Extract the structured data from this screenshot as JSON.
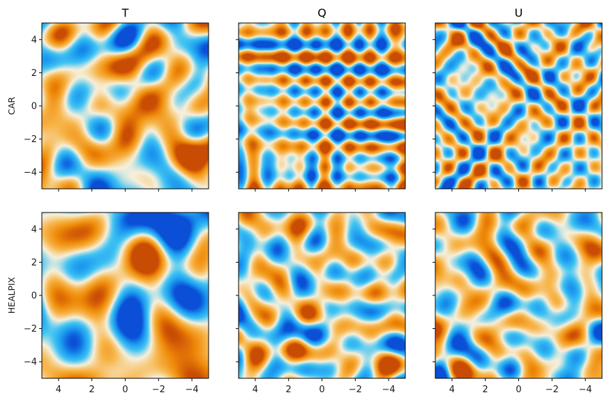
{
  "chart_data": {
    "type": "heatmap",
    "columns": [
      "T",
      "Q",
      "U"
    ],
    "rows": [
      "CAR",
      "HEALPIX"
    ],
    "xlim": [
      5,
      -5
    ],
    "ylim": [
      -5,
      5
    ],
    "x_ticks": [
      4,
      2,
      0,
      -2,
      -4
    ],
    "y_ticks": [
      4,
      2,
      0,
      -2,
      -4
    ],
    "x_tick_labels": [
      "4",
      "2",
      "0",
      "−2",
      "−4"
    ],
    "y_tick_labels": [
      "4",
      "2",
      "0",
      "−2",
      "−4"
    ],
    "colormap": [
      "#0a4fd6",
      "#1a96ef",
      "#3fc3f3",
      "#f6f0dc",
      "#f7b54a",
      "#ef8a08",
      "#c94c05"
    ],
    "grid": false
  }
}
